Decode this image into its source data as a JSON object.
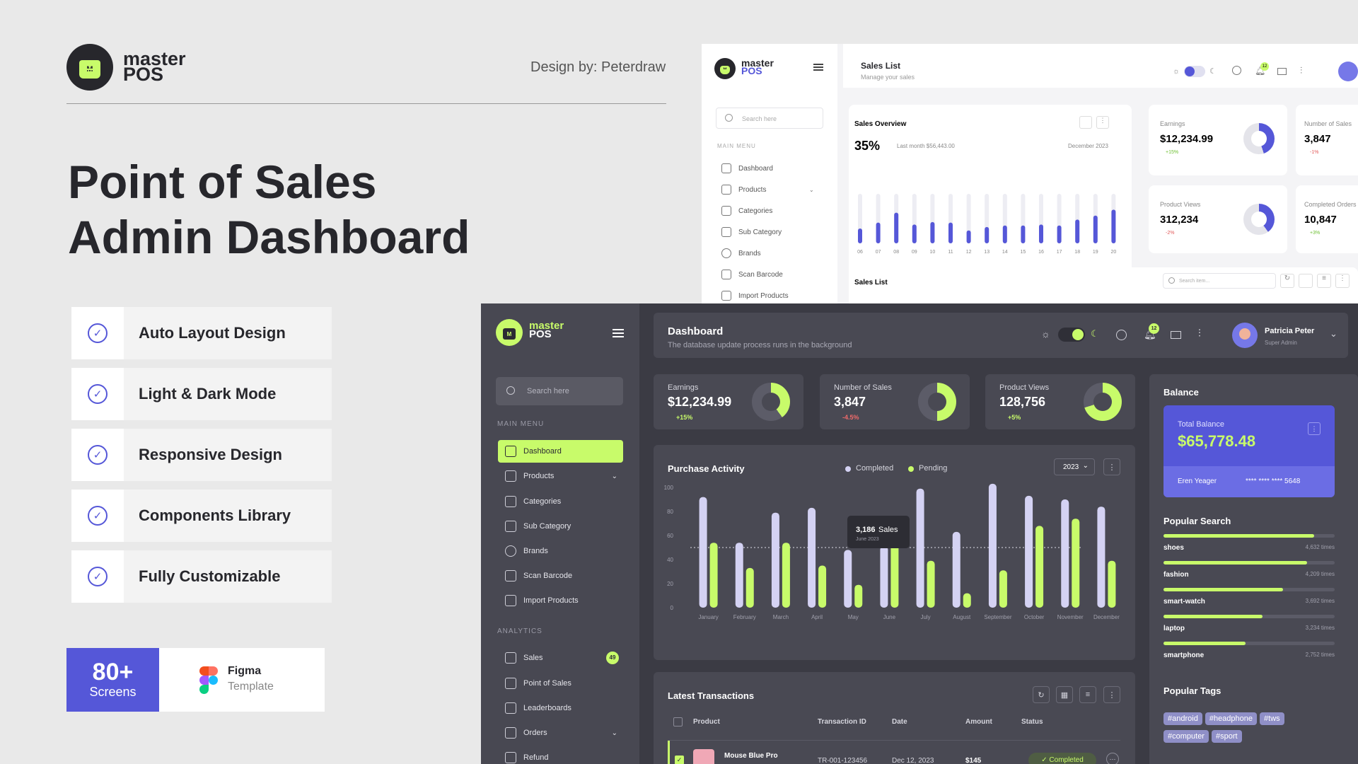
{
  "hero": {
    "brand_line1": "master",
    "brand_line2": "POS",
    "designer": "Design by: Peterdraw",
    "title_line1": "Point of Sales",
    "title_line2": "Admin Dashboard",
    "features": [
      "Auto Layout Design",
      "Light & Dark Mode",
      "Responsive Design",
      "Components Library",
      "Fully Customizable"
    ],
    "screens_count": "80+",
    "screens_label": "Screens",
    "figma_title": "Figma",
    "figma_sub": "Template"
  },
  "light": {
    "brand_line1": "master",
    "brand_line2": "POS",
    "search_placeholder": "Search here",
    "menu_heading": "MAIN MENU",
    "menu": [
      "Dashboard",
      "Products",
      "Categories",
      "Sub Category",
      "Brands",
      "Scan Barcode",
      "Import Products"
    ],
    "page_title": "Sales List",
    "page_sub": "Manage your sales",
    "notif_count": "12",
    "overview_title": "Sales Overview",
    "overview_pct": "35%",
    "overview_last": "Last month $56,443.00",
    "overview_month": "December 2023",
    "overview_days": [
      "06",
      "07",
      "08",
      "09",
      "10",
      "11",
      "12",
      "13",
      "14",
      "15",
      "16",
      "17",
      "18",
      "19",
      "20"
    ],
    "overview_values": [
      30,
      42,
      62,
      38,
      43,
      42,
      26,
      33,
      36,
      36,
      38,
      36,
      48,
      56,
      68
    ],
    "earnings_label": "Earnings",
    "earnings_value": "$12,234.99",
    "earnings_change": "+15%",
    "nsales_label": "Number of Sales",
    "nsales_value": "3,847",
    "nsales_change": "-1%",
    "views_label": "Product Views",
    "views_value": "312,234",
    "views_change": "-2%",
    "orders_label": "Completed Orders",
    "orders_value": "10,847",
    "orders_change": "+3%",
    "list_title": "Sales List",
    "list_search": "Search item..."
  },
  "dark": {
    "brand_line1": "master",
    "brand_line2": "POS",
    "search_placeholder": "Search here",
    "menu_heading": "MAIN MENU",
    "menu": [
      "Dashboard",
      "Products",
      "Categories",
      "Sub Category",
      "Brands",
      "Scan Barcode",
      "Import Products"
    ],
    "analytics_heading": "ANALYTICS",
    "analytics": [
      "Sales",
      "Point of Sales",
      "Leaderboards",
      "Orders",
      "Refund"
    ],
    "sales_badge": "49",
    "page_title": "Dashboard",
    "page_sub": "The database update process runs in the background",
    "notif_count": "12",
    "user_name": "Patricia Peter",
    "user_role": "Super Admin",
    "kpis": [
      {
        "label": "Earnings",
        "value": "$12,234.99",
        "change": "+15%"
      },
      {
        "label": "Number of Sales",
        "value": "3,847",
        "change": "-4.5%"
      },
      {
        "label": "Product Views",
        "value": "128,756",
        "change": "+5%"
      }
    ],
    "purchase_title": "Purchase Activity",
    "legend_completed": "Completed",
    "legend_pending": "Pending",
    "year": "2023",
    "tooltip_value": "3,186",
    "tooltip_unit": "Sales",
    "tooltip_date": "June 2023",
    "balance_title": "Balance",
    "total_balance_label": "Total Balance",
    "total_balance_value": "$65,778.48",
    "card_holder": "Eren Yeager",
    "card_number": "**** **** **** 5648",
    "popular_search_title": "Popular Search",
    "popular_search": [
      {
        "term": "shoes",
        "count": "4,632 times",
        "fill": 0.88
      },
      {
        "term": "fashion",
        "count": "4,209 times",
        "fill": 0.84
      },
      {
        "term": "smart-watch",
        "count": "3,692 times",
        "fill": 0.7
      },
      {
        "term": "laptop",
        "count": "3,234 times",
        "fill": 0.58
      },
      {
        "term": "smartphone",
        "count": "2,752 times",
        "fill": 0.48
      }
    ],
    "popular_tags_title": "Popular Tags",
    "tags": [
      "#android",
      "#headphone",
      "#tws",
      "#computer",
      "#sport"
    ],
    "latest_title": "Latest Transactions",
    "table_headers": [
      "Product",
      "Transaction ID",
      "Date",
      "Amount",
      "Status"
    ],
    "row": {
      "product": "Mouse Blue Pro",
      "id": "TR-001-123456",
      "date": "Dec 12, 2023",
      "amount": "$145",
      "status": "Completed"
    }
  },
  "chart_data": {
    "type": "bar",
    "categories": [
      "January",
      "February",
      "March",
      "April",
      "May",
      "June",
      "July",
      "August",
      "September",
      "October",
      "November",
      "December"
    ],
    "ylim": [
      0,
      100
    ],
    "yticks": [
      "0",
      "20",
      "40",
      "60",
      "80",
      "100"
    ],
    "series": [
      {
        "name": "Completed",
        "values": [
          92,
          54,
          79,
          83,
          48,
          51,
          99,
          63,
          103,
          93,
          90,
          84
        ]
      },
      {
        "name": "Pending",
        "values": [
          54,
          33,
          54,
          35,
          19,
          55,
          39,
          12,
          31,
          68,
          74,
          39
        ]
      }
    ],
    "colors": {
      "Completed": "#d4d2f3",
      "Pending": "#c8fb6a"
    }
  }
}
